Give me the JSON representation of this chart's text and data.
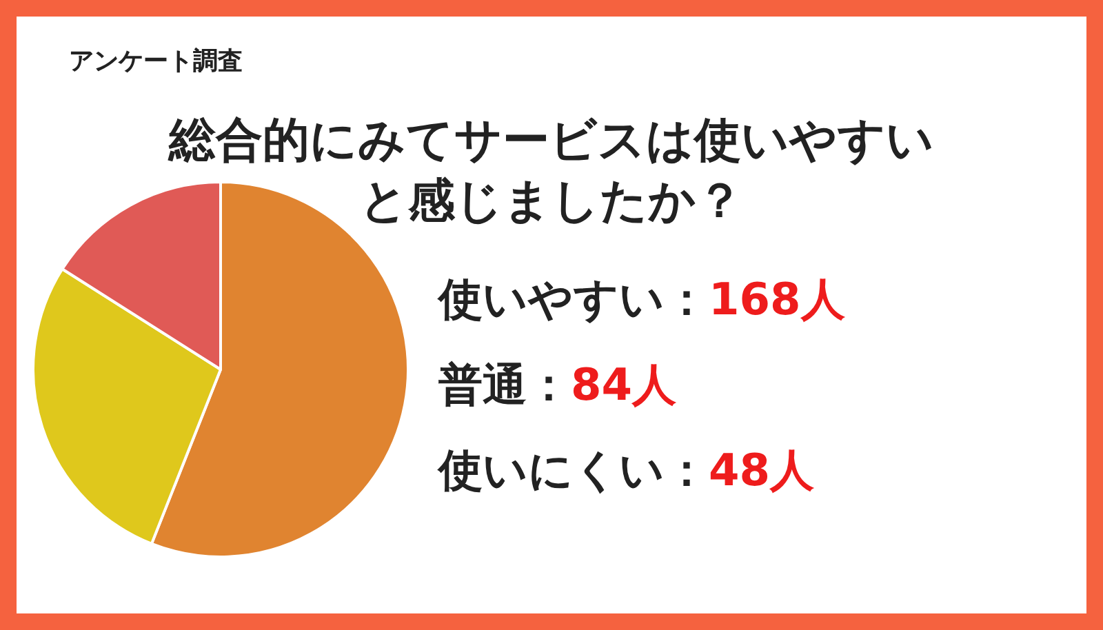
{
  "chart_data": {
    "type": "pie",
    "title": "総合的にみてサービスは使いやすいと感じましたか？",
    "subtitle": "アンケート調査",
    "categories": [
      null,
      null,
      null
    ],
    "annotations": [
      "使いやすい：168人",
      "普通：84人",
      "使いにくい：48人"
    ],
    "values": [
      56,
      28,
      16
    ],
    "colors": [
      "#e08430",
      "#dfc81c",
      "#e05a56"
    ],
    "legend": false
  }
}
